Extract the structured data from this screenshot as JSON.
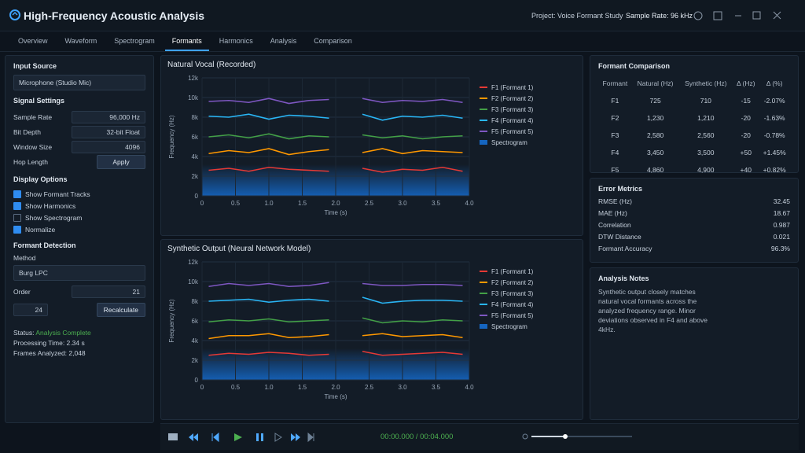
{
  "app": {
    "title": "High-Frequency Acoustic Analysis",
    "project": "Project: Voice Formant Study",
    "sample_rate": "Sample Rate: 96 kHz"
  },
  "tabs": [
    "Overview",
    "Waveform",
    "Spectrogram",
    "Formants",
    "Harmonics",
    "Analysis",
    "Comparison"
  ],
  "active_tab": 3,
  "sidebar": {
    "input_source": {
      "heading": "Input Source",
      "value": "Microphone (Studio Mic)"
    },
    "signal_settings": {
      "heading": "Signal Settings",
      "fields": [
        {
          "label": "Sample Rate",
          "value": "96,000 Hz"
        },
        {
          "label": "Bit Depth",
          "value": "32-bit Float"
        },
        {
          "label": "Window Size",
          "value": "4096"
        }
      ],
      "hop_label": "Hop Length",
      "hop_button": "Apply"
    },
    "display_options": {
      "heading": "Display Options",
      "options": [
        {
          "label": "Show Formant Tracks",
          "checked": true
        },
        {
          "label": "Show Harmonics",
          "checked": true
        },
        {
          "label": "Show Spectrogram",
          "checked": false
        },
        {
          "label": "Normalize",
          "checked": true
        }
      ]
    },
    "formant_detection": {
      "heading": "Formant Detection",
      "method_label": "Method",
      "method": "Burg LPC",
      "order_label": "Order",
      "order": "21",
      "value": "24",
      "button": "Recalculate"
    },
    "status": {
      "label": "Status:",
      "value": "Analysis Complete",
      "processing_time": "Processing Time: 2.34 s",
      "frames": "Frames Analyzed: 2,048"
    }
  },
  "chart_data": [
    {
      "type": "line",
      "title": "Natural Vocal (Recorded)",
      "x_label": "Time (s)",
      "y_label": "Frequency (Hz)",
      "x": [
        0.1,
        0.4,
        0.7,
        1.0,
        1.3,
        1.6,
        1.9,
        2.2,
        2.4,
        2.7,
        3.0,
        3.3,
        3.6,
        3.9
      ],
      "series": [
        {
          "name": "F1 (Formant 1)",
          "color": "#e53935",
          "values": [
            2600,
            2800,
            2500,
            2900,
            2700,
            2600,
            2500,
            null,
            2800,
            2400,
            2700,
            2600,
            2900,
            2500
          ]
        },
        {
          "name": "F2 (Formant 2)",
          "color": "#ff9800",
          "values": [
            4300,
            4600,
            4400,
            4800,
            4200,
            4500,
            4700,
            null,
            4400,
            4800,
            4300,
            4600,
            4500,
            4400
          ]
        },
        {
          "name": "F3 (Formant 3)",
          "color": "#43a047",
          "values": [
            6000,
            6200,
            5900,
            6300,
            5800,
            6100,
            6000,
            null,
            6200,
            5900,
            6100,
            5800,
            6000,
            6100
          ]
        },
        {
          "name": "F4 (Formant 4)",
          "color": "#29b6f6",
          "values": [
            8100,
            8000,
            8300,
            7800,
            8200,
            8100,
            7900,
            null,
            8300,
            7700,
            8100,
            8000,
            8200,
            7900
          ]
        },
        {
          "name": "F5 (Formant 5)",
          "color": "#7e57c2",
          "values": [
            9600,
            9700,
            9500,
            9900,
            9400,
            9700,
            9800,
            null,
            9900,
            9500,
            9700,
            9600,
            9800,
            9500
          ]
        }
      ],
      "spectrogram": {
        "name": "Spectrogram",
        "color": "#1565c0"
      },
      "xlim": [
        0,
        4
      ],
      "xticks": [
        0,
        0.5,
        {
          "value": 1,
          "label": "1.0"
        },
        1.5,
        {
          "value": 2,
          "label": "2.0"
        },
        2.5,
        {
          "value": 3,
          "label": "3.0"
        },
        3.5,
        {
          "value": 4,
          "label": "4.0"
        }
      ],
      "ylim": [
        0,
        12000
      ],
      "yticks": [
        0,
        {
          "value": 2000,
          "label": "2k"
        },
        {
          "value": 4000,
          "label": "4k"
        },
        {
          "value": 6000,
          "label": "6k"
        },
        {
          "value": 8000,
          "label": "8k"
        },
        {
          "value": 10000,
          "label": "10k"
        },
        {
          "value": 12000,
          "label": "12k"
        }
      ],
      "grid": true
    },
    {
      "type": "line",
      "title": "Synthetic Output (Neural Network Model)",
      "x_label": "Time (s)",
      "y_label": "Frequency (Hz)",
      "x": [
        0.1,
        0.4,
        0.7,
        1.0,
        1.3,
        1.6,
        1.9,
        2.2,
        2.4,
        2.7,
        3.0,
        3.3,
        3.6,
        3.9
      ],
      "series": [
        {
          "name": "F1 (Formant 1)",
          "color": "#e53935",
          "values": [
            2500,
            2700,
            2600,
            2800,
            2700,
            2500,
            2600,
            null,
            2900,
            2500,
            2600,
            2700,
            2800,
            2600
          ]
        },
        {
          "name": "F2 (Formant 2)",
          "color": "#ff9800",
          "values": [
            4200,
            4500,
            4500,
            4700,
            4300,
            4400,
            4600,
            null,
            4500,
            4700,
            4400,
            4500,
            4600,
            4300
          ]
        },
        {
          "name": "F3 (Formant 3)",
          "color": "#43a047",
          "values": [
            5900,
            6100,
            6000,
            6200,
            5900,
            6000,
            6100,
            null,
            6300,
            5800,
            6000,
            5900,
            6100,
            6000
          ]
        },
        {
          "name": "F4 (Formant 4)",
          "color": "#29b6f6",
          "values": [
            8000,
            8100,
            8200,
            7900,
            8100,
            8200,
            8000,
            null,
            8400,
            7800,
            8000,
            8100,
            8100,
            8000
          ]
        },
        {
          "name": "F5 (Formant 5)",
          "color": "#7e57c2",
          "values": [
            9500,
            9800,
            9600,
            9800,
            9500,
            9600,
            9900,
            null,
            9800,
            9600,
            9600,
            9700,
            9700,
            9600
          ]
        }
      ],
      "spectrogram": {
        "name": "Spectrogram",
        "color": "#1565c0"
      },
      "xlim": [
        0,
        4
      ],
      "xticks": [
        0,
        0.5,
        {
          "value": 1,
          "label": "1.0"
        },
        1.5,
        {
          "value": 2,
          "label": "2.0"
        },
        2.5,
        {
          "value": 3,
          "label": "3.0"
        },
        3.5,
        {
          "value": 4,
          "label": "4.0"
        }
      ],
      "ylim": [
        0,
        12000
      ],
      "yticks": [
        0,
        {
          "value": 2000,
          "label": "2k"
        },
        {
          "value": 4000,
          "label": "4k"
        },
        {
          "value": 6000,
          "label": "6k"
        },
        {
          "value": 8000,
          "label": "8k"
        },
        {
          "value": 10000,
          "label": "10k"
        },
        {
          "value": 12000,
          "label": "12k"
        }
      ],
      "grid": true
    }
  ],
  "formant_comparison": {
    "title": "Formant Comparison",
    "columns": [
      "Formant",
      "Natural (Hz)",
      "Synthetic (Hz)",
      "Δ (Hz)",
      "Δ (%)"
    ],
    "rows": [
      [
        "F1",
        "725",
        "710",
        "-15",
        "-2.07%"
      ],
      [
        "F2",
        "1,230",
        "1,210",
        "-20",
        "-1.63%"
      ],
      [
        "F3",
        "2,580",
        "2,560",
        "-20",
        "-0.78%"
      ],
      [
        "F4",
        "3,450",
        "3,500",
        "+50",
        "+1.45%"
      ],
      [
        "F5",
        "4,860",
        "4,900",
        "+40",
        "+0.82%"
      ]
    ]
  },
  "error_metrics": {
    "title": "Error Metrics",
    "rows": [
      [
        "RMSE (Hz)",
        "32.45"
      ],
      [
        "MAE (Hz)",
        "18.67"
      ],
      [
        "Correlation",
        "0.987"
      ],
      [
        "DTW Distance",
        "0.021"
      ],
      [
        "Formant Accuracy",
        "96.3%"
      ]
    ]
  },
  "analysis_notes": {
    "title": "Analysis Notes",
    "text": "Synthetic output closely matches natural vocal formants across the analyzed frequency range. Minor deviations observed in F4 and above 4kHz."
  },
  "playback": {
    "time": "00:00.000 / 00:04.000"
  }
}
